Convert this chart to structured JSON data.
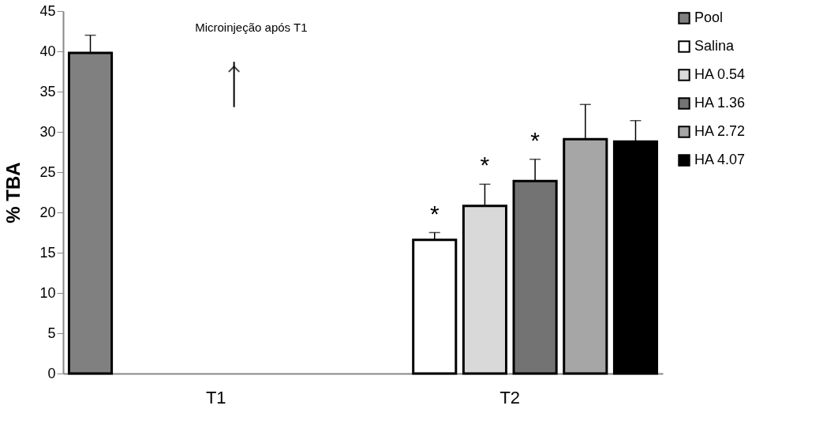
{
  "chart_data": {
    "type": "bar",
    "ylabel": "% TBA",
    "categories": [
      "T1",
      "T2"
    ],
    "series": [
      {
        "name": "Pool",
        "color": "#808080",
        "values": [
          39.8,
          null
        ],
        "errors": [
          [
            39.8,
            42.0
          ],
          null
        ]
      },
      {
        "name": "Salina",
        "color": "#ffffff",
        "values": [
          null,
          16.6
        ],
        "errors": [
          null,
          [
            16.6,
            17.5
          ]
        ],
        "value_labels": [
          null,
          "*"
        ]
      },
      {
        "name": "HA 0.54",
        "color": "#d9d9d9",
        "values": [
          null,
          20.8
        ],
        "errors": [
          null,
          [
            20.8,
            23.5
          ]
        ],
        "value_labels": [
          null,
          "*"
        ]
      },
      {
        "name": "HA 1.36",
        "color": "#737373",
        "values": [
          null,
          23.9
        ],
        "errors": [
          null,
          [
            23.9,
            26.6
          ]
        ],
        "value_labels": [
          null,
          "*"
        ]
      },
      {
        "name": "HA 2.72",
        "color": "#a6a6a6",
        "values": [
          null,
          29.1
        ],
        "errors": [
          null,
          [
            29.1,
            33.4
          ]
        ]
      },
      {
        "name": "HA 4.07",
        "color": "#000000",
        "values": [
          null,
          28.8
        ],
        "errors": [
          null,
          [
            28.8,
            31.4
          ]
        ]
      }
    ],
    "ylim": [
      0,
      45
    ],
    "yticks": [
      0,
      5,
      10,
      15,
      20,
      25,
      30,
      35,
      40,
      45
    ],
    "annotations": [
      "Microinjeção após  T1"
    ],
    "legend": "right",
    "grid": false
  }
}
